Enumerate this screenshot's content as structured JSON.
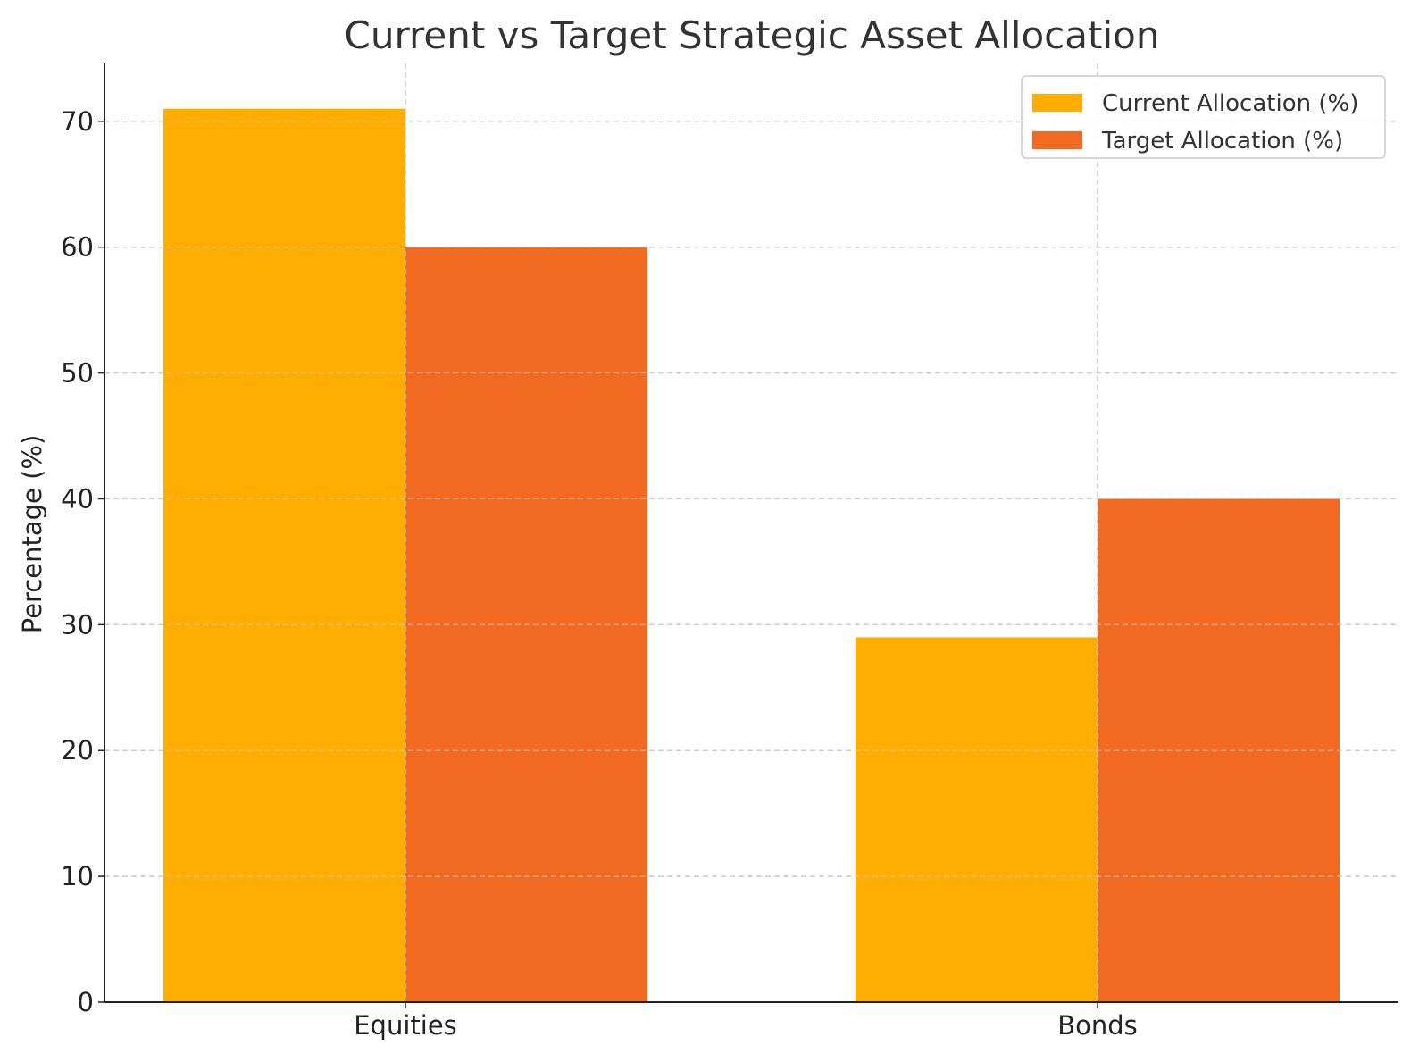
{
  "chart_data": {
    "type": "bar",
    "title": "Current vs Target Strategic Asset Allocation",
    "xlabel": "",
    "ylabel": "Percentage (%)",
    "categories": [
      "Equities",
      "Bonds"
    ],
    "series": [
      {
        "name": "Current Allocation (%)",
        "values": [
          71,
          29
        ],
        "color": "#FFAE00"
      },
      {
        "name": "Target Allocation (%)",
        "values": [
          60,
          40
        ],
        "color": "#F26A22"
      }
    ],
    "ylim": [
      0,
      74.6
    ],
    "yticks": [
      0,
      10,
      20,
      30,
      40,
      50,
      60,
      70
    ],
    "grid": true,
    "grid_color": "#cccccc",
    "grid_style": "dashed",
    "legend_position": "top-right"
  }
}
